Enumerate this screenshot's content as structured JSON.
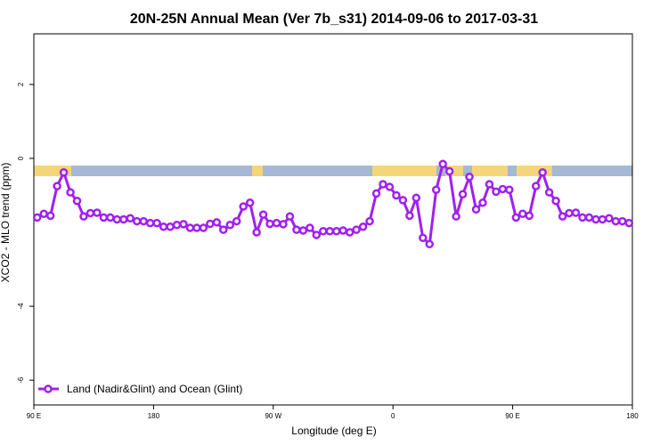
{
  "chart_data": {
    "type": "line",
    "title": "20N-25N Annual Mean (Ver 7b_s31)   2014-09-06 to 2017-03-31",
    "x_label": "Longitude (deg E)",
    "y_label": "XCO2 - MLO trend (ppm)",
    "xlim": [
      90,
      540
    ],
    "ylim": [
      -6.67,
      3.37
    ],
    "xticks": [
      {
        "value": 90,
        "label": "90 E"
      },
      180,
      {
        "value": 270,
        "label": "90 W"
      },
      {
        "value": 360,
        "label": "0"
      },
      {
        "value": 450,
        "label": "90 E"
      },
      {
        "value": 540,
        "label": "180"
      }
    ],
    "yticks": [
      -6,
      -4,
      0,
      2
    ],
    "legend": "bottomleft",
    "x": [
      92.5,
      97.5,
      102.5,
      107.5,
      112.5,
      117.5,
      122.5,
      127.5,
      132.5,
      137.5,
      142.5,
      147.5,
      152.5,
      157.5,
      162.5,
      167.5,
      172.5,
      177.5,
      182.5,
      187.5,
      192.5,
      197.5,
      202.5,
      207.5,
      212.5,
      217.5,
      222.5,
      227.5,
      232.5,
      237.5,
      242.5,
      247.5,
      252.5,
      257.5,
      262.5,
      267.5,
      272.5,
      277.5,
      282.5,
      287.5,
      292.5,
      297.5,
      302.5,
      307.5,
      312.5,
      317.5,
      322.5,
      327.5,
      332.5,
      337.5,
      342.5,
      347.5,
      352.5,
      357.5,
      362.5,
      367.5,
      372.5,
      377.5,
      382.5,
      387.5,
      392.5,
      397.5,
      402.5,
      407.5,
      412.5,
      417.5,
      422.5,
      427.5,
      432.5,
      437.5,
      442.5,
      447.5,
      452.5,
      457.5,
      462.5,
      467.5,
      472.5,
      477.5,
      482.5,
      487.5,
      492.5,
      497.5,
      502.5,
      507.5,
      512.5,
      517.5,
      522.5,
      527.5,
      532.5,
      537.5
    ],
    "series": [
      {
        "name": "Land (Nadir&Glint) and Ocean (Glint)",
        "color": "#a020f0",
        "values": [
          -1.6,
          -1.5,
          -1.55,
          -0.75,
          -0.38,
          -0.92,
          -1.15,
          -1.57,
          -1.48,
          -1.47,
          -1.6,
          -1.6,
          -1.65,
          -1.65,
          -1.62,
          -1.7,
          -1.7,
          -1.75,
          -1.75,
          -1.85,
          -1.85,
          -1.8,
          -1.78,
          -1.88,
          -1.88,
          -1.88,
          -1.77,
          -1.73,
          -1.93,
          -1.8,
          -1.7,
          -1.3,
          -1.2,
          -2.0,
          -1.52,
          -1.77,
          -1.75,
          -1.78,
          -1.57,
          -1.93,
          -1.95,
          -1.88,
          -2.07,
          -1.97,
          -1.97,
          -1.97,
          -1.95,
          -2.0,
          -1.93,
          -1.85,
          -1.7,
          -0.95,
          -0.7,
          -0.77,
          -1.0,
          -1.13,
          -1.55,
          -1.07,
          -2.15,
          -2.32,
          -0.85,
          -0.15,
          -0.35,
          -1.57,
          -0.97,
          -0.5,
          -1.38,
          -1.2,
          -0.7,
          -0.9,
          -0.83,
          -0.85,
          -1.6,
          -1.5,
          -1.55,
          -0.75,
          -0.38,
          -0.92,
          -1.15,
          -1.57,
          -1.48,
          -1.47,
          -1.6,
          -1.6,
          -1.65,
          -1.65,
          -1.62,
          -1.7,
          -1.7,
          -1.75
        ]
      }
    ]
  }
}
